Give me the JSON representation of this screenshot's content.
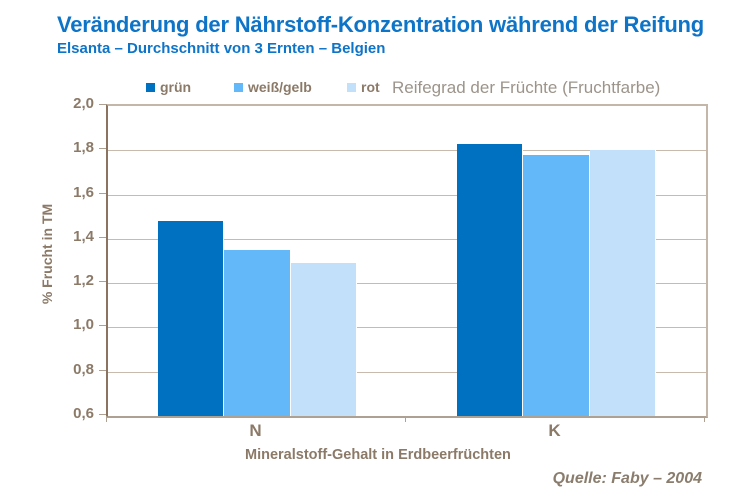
{
  "title": "Veränderung der Nährstoff-Konzentration während der Reifung",
  "subtitle": "Elsanta – Durchschnitt von 3 Ernten – Belgien",
  "legend": {
    "items": [
      {
        "label": "grün",
        "color": "#0070C0"
      },
      {
        "label": "weiß/gelb",
        "color": "#63B8FA"
      },
      {
        "label": "rot",
        "color": "#C3E0FB"
      }
    ],
    "note": "Reifegrad der Früchte (Fruchtfarbe)"
  },
  "chart_data": {
    "type": "bar",
    "categories": [
      "N",
      "K"
    ],
    "series": [
      {
        "name": "grün",
        "color": "#0070C0",
        "values": [
          1.48,
          1.83
        ]
      },
      {
        "name": "weiß/gelb",
        "color": "#63B8FA",
        "values": [
          1.35,
          1.78
        ]
      },
      {
        "name": "rot",
        "color": "#C3E0FB",
        "values": [
          1.29,
          1.8
        ]
      }
    ],
    "title": "Veränderung der Nährstoff-Konzentration während der Reifung",
    "xlabel": "Mineralstoff-Gehalt in Erdbeerfrüchten",
    "ylabel": "% Frucht in TM",
    "ylim": [
      0.6,
      2.0
    ],
    "ytick_step": 0.2,
    "ytick_labels": [
      "2,0",
      "1,8",
      "1,6",
      "1,4",
      "1,2",
      "1,0",
      "0,8",
      "0,6"
    ],
    "grid": true,
    "legend_position": "top"
  },
  "source": "Quelle:  Faby – 2004",
  "colors": {
    "title_blue": "#0E74C8",
    "axis_text_brown": "#8C7A68",
    "note_gray": "#9C948A",
    "gridline": "#C8BBAE"
  }
}
